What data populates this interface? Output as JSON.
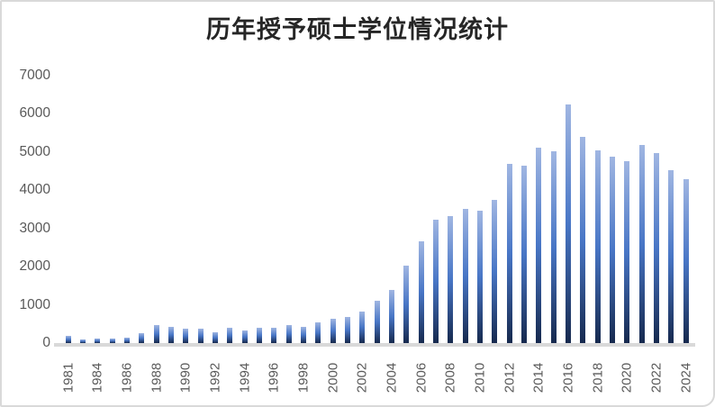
{
  "chart_data": {
    "type": "bar",
    "title": "历年授予硕士学位情况统计",
    "xlabel": "",
    "ylabel": "",
    "ylim": [
      0,
      7000
    ],
    "grid": false,
    "legend": "none",
    "categories": [
      1981,
      1983,
      1984,
      1985,
      1986,
      1987,
      1988,
      1989,
      1990,
      1991,
      1992,
      1993,
      1994,
      1995,
      1996,
      1997,
      1998,
      1999,
      2000,
      2001,
      2002,
      2003,
      2004,
      2005,
      2006,
      2007,
      2008,
      2009,
      2010,
      2011,
      2012,
      2013,
      2014,
      2015,
      2016,
      2017,
      2018,
      2019,
      2020,
      2021,
      2022,
      2023,
      2024
    ],
    "values": [
      200,
      90,
      120,
      120,
      150,
      260,
      460,
      430,
      375,
      375,
      280,
      390,
      330,
      390,
      410,
      465,
      430,
      535,
      640,
      680,
      820,
      1100,
      1400,
      2030,
      2650,
      3220,
      3320,
      3520,
      3450,
      3750,
      4680,
      4640,
      5100,
      5010,
      6250,
      5400,
      5040,
      4880,
      4760,
      5190,
      4960,
      4510,
      4280
    ],
    "y_ticks": [
      0,
      1000,
      2000,
      3000,
      4000,
      5000,
      6000,
      7000
    ],
    "x_tick_labels": [
      "1981",
      "1984",
      "1986",
      "1988",
      "1990",
      "1992",
      "1994",
      "1996",
      "1998",
      "2000",
      "2002",
      "2004",
      "2006",
      "2008",
      "2010",
      "2012",
      "2014",
      "2016",
      "2018",
      "2020",
      "2022",
      "2024"
    ],
    "x_label_every": 2,
    "colors": {
      "bar_gradient_top": "#a0b6e2",
      "bar_gradient_mid": "#4876c6",
      "bar_gradient_bottom": "#16294e",
      "axis_line": "#d9d9d9",
      "tick_label": "#595959",
      "title": "#262626",
      "frame_border": "#d9d9d9",
      "background": "#ffffff"
    }
  }
}
